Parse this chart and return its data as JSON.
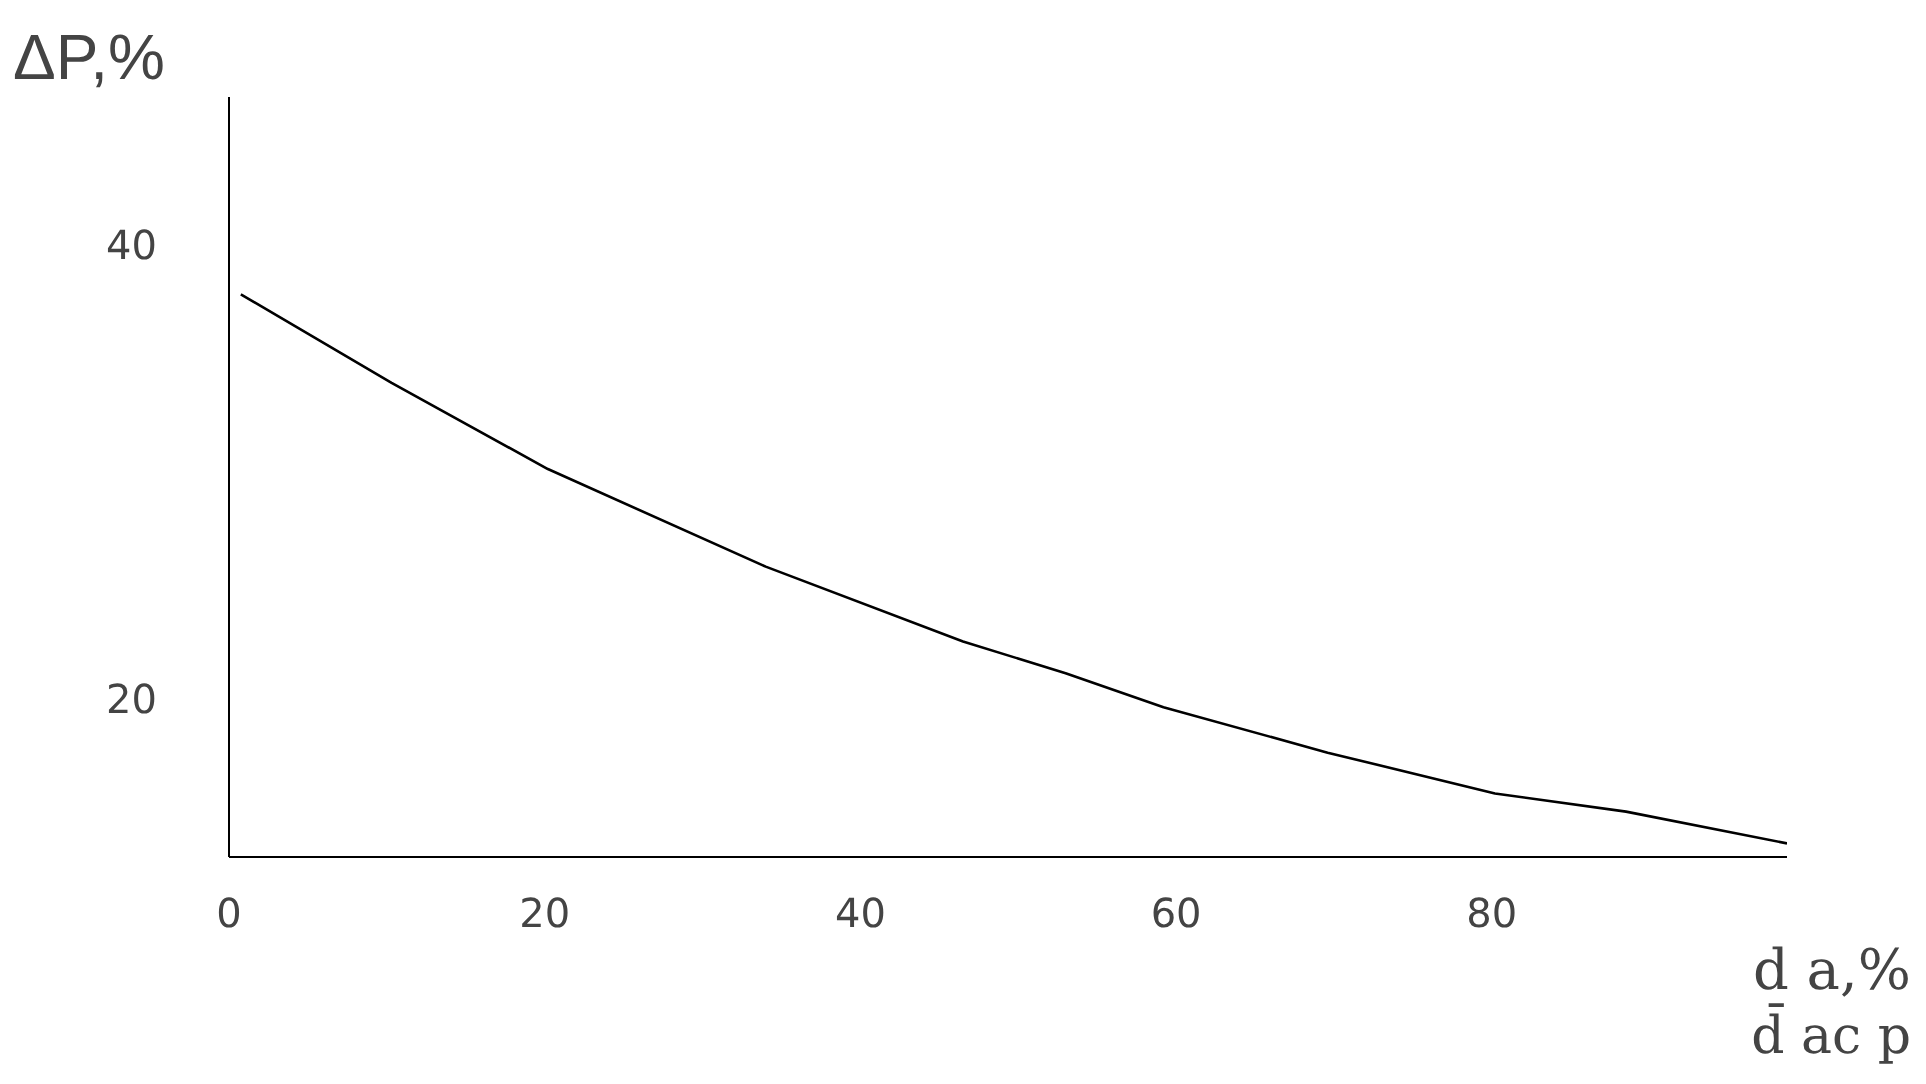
{
  "chart_data": {
    "type": "line",
    "ylabel": "ΔP,%",
    "xlabel": "d a,%",
    "annotations": [
      "d̄ ac p"
    ],
    "series": [
      {
        "color": "#000000",
        "x": [
          0.75,
          10.3,
          20.2,
          34,
          46.5,
          53,
          59.2,
          69.6,
          80.2,
          88.5,
          98.7
        ],
        "values": [
          37.8,
          33.9,
          30.1,
          25.8,
          22.5,
          21.1,
          19.6,
          17.6,
          15.8,
          15.0,
          13.6
        ]
      }
    ],
    "xlim": [
      0,
      98.7
    ],
    "ylim": [
      13,
      46.5
    ],
    "xticks": [
      0,
      20,
      40,
      60,
      80
    ],
    "yticks": [
      20,
      40
    ],
    "grid": false,
    "marker": "none",
    "line_style": "solid"
  }
}
